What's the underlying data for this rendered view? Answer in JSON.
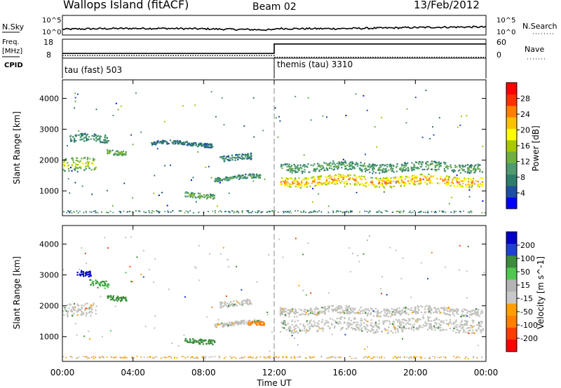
{
  "header": {
    "station": "Wallops Island (fitACF)",
    "beam": "Beam 02",
    "date": "13/Feb/2012"
  },
  "colors": {
    "power_scale": [
      "#0000ff",
      "#1f4fa0",
      "#2e7d6b",
      "#4f9a6f",
      "#6fb040",
      "#a8c800",
      "#ffff00",
      "#ffc000",
      "#ff8000",
      "#ff3000",
      "#ff0000"
    ],
    "velocity_scale": [
      "#0000c8",
      "#2040d0",
      "#3c8c3c",
      "#50c850",
      "#b4b4b4",
      "#c8c8c8",
      "#ffa000",
      "#ff8000",
      "#ff3c00",
      "#ff0000"
    ],
    "ground_scatter": "#c0c0bc"
  },
  "chart_data": [
    {
      "type": "line",
      "name": "noise-panel",
      "left_label": "N.Sky",
      "right_label": "N.Search",
      "left_ticks": [
        "10^5",
        "10^0"
      ],
      "right_ticks": [
        "10^5",
        "10^0"
      ],
      "series": [
        {
          "name": "N.Sky",
          "style": "solid"
        },
        {
          "name": "N.Search",
          "style": "dotted"
        }
      ]
    },
    {
      "type": "line",
      "name": "frequency-panel",
      "left_label": "Freq. [MHz]",
      "right_label": "Nave",
      "left_ticks": [
        18,
        8
      ],
      "right_ticks": [
        60,
        0
      ],
      "cpid_label": "CPID",
      "programs": [
        {
          "name": "tau (fast)",
          "id": 503,
          "start": "00:00",
          "end": "12:00"
        },
        {
          "name": "themis (tau)",
          "id": 3310,
          "start": "12:00",
          "end": "24:00"
        }
      ],
      "freq_mhz": [
        {
          "x": "00:00",
          "y": 10.5
        },
        {
          "x": "12:00",
          "y": 10.5
        },
        {
          "x": "12:00",
          "y": 15.5
        },
        {
          "x": "24:00",
          "y": 15.5
        }
      ],
      "nave": [
        {
          "x": "00:00",
          "y": 8
        },
        {
          "x": "12:00",
          "y": 8
        },
        {
          "x": "12:00",
          "y": 3
        },
        {
          "x": "24:00",
          "y": 3
        }
      ]
    },
    {
      "type": "heatmap",
      "name": "power-panel",
      "ylabel": "Slant Range [km]",
      "yticks": [
        1000,
        2000,
        3000,
        4000
      ],
      "ylim": [
        200,
        4600
      ],
      "xlim": [
        0,
        24
      ],
      "colorbar_label": "Power [dB]",
      "colorbar_ticks": [
        28,
        24,
        20,
        16,
        12,
        8,
        4
      ],
      "colorbar_range": [
        0,
        32
      ],
      "features": [
        {
          "t_start": 0.0,
          "t_end": 1.9,
          "range_center": 1850,
          "thickness": 420,
          "power": 18
        },
        {
          "t_start": 0.4,
          "t_end": 2.6,
          "range_center": 2700,
          "thickness": 260,
          "power": 10
        },
        {
          "t_start": 2.5,
          "t_end": 3.6,
          "range_center": 2300,
          "thickness": 150,
          "power": 14
        },
        {
          "t_start": 6.9,
          "t_end": 8.6,
          "range_center": 900,
          "thickness": 160,
          "power": 14
        },
        {
          "t_start": 8.6,
          "t_end": 11.2,
          "range_center": 1450,
          "thickness": 130,
          "power": 11
        },
        {
          "t_start": 8.9,
          "t_end": 10.7,
          "range_center": 2100,
          "thickness": 180,
          "power": 9
        },
        {
          "t_start": 5.0,
          "t_end": 8.5,
          "range_center": 2550,
          "thickness": 120,
          "power": 7
        },
        {
          "t_start": 12.3,
          "t_end": 23.8,
          "range_center": 1350,
          "thickness": 320,
          "power": 27
        },
        {
          "t_start": 12.3,
          "t_end": 23.8,
          "range_center": 1800,
          "thickness": 280,
          "power": 12
        }
      ]
    },
    {
      "type": "heatmap",
      "name": "velocity-panel",
      "ylabel": "Slant Range [km]",
      "yticks": [
        1000,
        2000,
        3000,
        4000
      ],
      "ylim": [
        200,
        4600
      ],
      "xlim": [
        0,
        24
      ],
      "colorbar_label": "Velocity [m s^-1]",
      "colorbar_ticks": [
        200,
        100,
        50,
        15,
        -15,
        -50,
        -100,
        -200
      ],
      "xlabel": "Time UT",
      "xticks": [
        "00:00",
        "04:00",
        "08:00",
        "12:00",
        "16:00",
        "20:00",
        "00:00"
      ],
      "features": [
        {
          "t_start": 0.0,
          "t_end": 1.9,
          "range_center": 1850,
          "thickness": 420,
          "velocity": "ground"
        },
        {
          "t_start": 0.8,
          "t_end": 1.6,
          "range_center": 3000,
          "thickness": 200,
          "velocity": 220
        },
        {
          "t_start": 1.5,
          "t_end": 2.6,
          "range_center": 2700,
          "thickness": 240,
          "velocity": 30
        },
        {
          "t_start": 2.5,
          "t_end": 3.6,
          "range_center": 2300,
          "thickness": 150,
          "velocity": 60
        },
        {
          "t_start": 6.9,
          "t_end": 8.6,
          "range_center": 900,
          "thickness": 160,
          "velocity": 60
        },
        {
          "t_start": 8.6,
          "t_end": 11.2,
          "range_center": 1450,
          "thickness": 130,
          "velocity": "ground"
        },
        {
          "t_start": 10.5,
          "t_end": 11.4,
          "range_center": 1400,
          "thickness": 120,
          "velocity": -60
        },
        {
          "t_start": 8.9,
          "t_end": 10.7,
          "range_center": 2100,
          "thickness": 180,
          "velocity": "ground"
        },
        {
          "t_start": 12.3,
          "t_end": 23.8,
          "range_center": 1400,
          "thickness": 420,
          "velocity": "ground"
        },
        {
          "t_start": 12.3,
          "t_end": 23.8,
          "range_center": 1850,
          "thickness": 260,
          "velocity": "ground"
        }
      ]
    }
  ]
}
